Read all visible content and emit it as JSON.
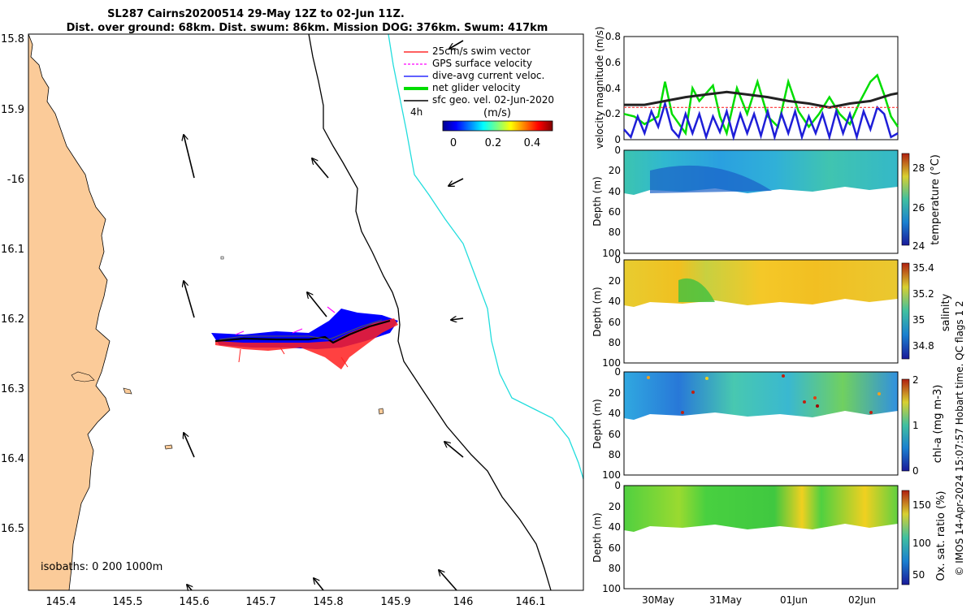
{
  "header": {
    "line1": "SL287 Cairns20200514 29-May 12Z to 02-Jun 11Z.",
    "line2": "Dist. over ground: 68km. Dist. swum: 86km. Mission DOG: 376km. Swum: 417km"
  },
  "map": {
    "lon_ticks": [
      "145.4",
      "145.5",
      "145.6",
      "145.7",
      "145.8",
      "145.9",
      "146",
      "146.1"
    ],
    "lat_ticks": [
      "15.8",
      "15.9",
      "-16",
      "16.1",
      "16.2",
      "16.3",
      "16.4",
      "16.5"
    ],
    "legend": [
      {
        "label": "25cm/s swim vector",
        "color": "#ff0000"
      },
      {
        "label": "GPS surface velocity",
        "color": "#ff00ff"
      },
      {
        "label": "dive-avg current veloc.",
        "color": "#0000ff"
      },
      {
        "label": "net glider velocity",
        "color": "#00dd00"
      },
      {
        "label": "sfc geo. vel. 02-Jun-2020",
        "color": "#000000"
      }
    ],
    "interval_label": "4h",
    "colorbar_title": "(m/s)",
    "colorbar_ticks": [
      "0",
      "0.2",
      "0.4"
    ],
    "isobaths_label": "isobaths: 0   200  1000m",
    "land_color": "#fbcb99",
    "isobath_200_color": "#000000",
    "isobath_1000_color": "#22dddd"
  },
  "chart_data": [
    {
      "type": "line",
      "ylabel": "velocity magnitude (m/s)",
      "ylim": [
        0,
        0.8
      ],
      "yticks": [
        "0",
        "0.2",
        "0.4",
        "0.6",
        "0.8"
      ],
      "xlim": [
        0,
        4
      ],
      "series": [
        {
          "name": "net glider velocity",
          "color": "#00dd00",
          "x": [
            0,
            0.15,
            0.3,
            0.5,
            0.6,
            0.7,
            0.9,
            1.0,
            1.1,
            1.3,
            1.4,
            1.5,
            1.65,
            1.8,
            1.95,
            2.1,
            2.25,
            2.4,
            2.55,
            2.7,
            2.85,
            3.0,
            3.15,
            3.3,
            3.45,
            3.6,
            3.7,
            3.8,
            3.9,
            4.0
          ],
          "y": [
            0.2,
            0.18,
            0.12,
            0.18,
            0.45,
            0.2,
            0.05,
            0.4,
            0.3,
            0.42,
            0.18,
            0.05,
            0.4,
            0.2,
            0.45,
            0.18,
            0.1,
            0.45,
            0.22,
            0.1,
            0.2,
            0.33,
            0.2,
            0.12,
            0.3,
            0.45,
            0.5,
            0.35,
            0.18,
            0.1
          ]
        },
        {
          "name": "dive-avg current veloc.",
          "color": "#1e1ed8",
          "x": [
            0,
            0.1,
            0.2,
            0.3,
            0.4,
            0.5,
            0.6,
            0.7,
            0.8,
            0.9,
            1.0,
            1.1,
            1.2,
            1.3,
            1.4,
            1.5,
            1.6,
            1.7,
            1.8,
            1.9,
            2.0,
            2.1,
            2.2,
            2.3,
            2.4,
            2.5,
            2.6,
            2.7,
            2.8,
            2.9,
            3.0,
            3.1,
            3.2,
            3.3,
            3.4,
            3.5,
            3.6,
            3.7,
            3.8,
            3.9,
            4.0
          ],
          "y": [
            0.08,
            0.02,
            0.18,
            0.05,
            0.22,
            0.1,
            0.28,
            0.08,
            0.02,
            0.2,
            0.05,
            0.2,
            0.02,
            0.18,
            0.06,
            0.22,
            0.02,
            0.2,
            0.05,
            0.2,
            0.03,
            0.22,
            0.02,
            0.2,
            0.05,
            0.22,
            0.02,
            0.18,
            0.05,
            0.2,
            0.02,
            0.22,
            0.05,
            0.2,
            0.02,
            0.22,
            0.08,
            0.25,
            0.2,
            0.02,
            0.05
          ]
        },
        {
          "name": "sfc geo. vel. 02-Jun-2020",
          "color": "#222222",
          "x": [
            0,
            0.3,
            0.6,
            0.9,
            1.2,
            1.5,
            1.8,
            2.1,
            2.4,
            2.7,
            3.0,
            3.3,
            3.6,
            3.9,
            4.0
          ],
          "y": [
            0.27,
            0.27,
            0.3,
            0.33,
            0.35,
            0.37,
            0.35,
            0.33,
            0.3,
            0.28,
            0.25,
            0.28,
            0.3,
            0.35,
            0.36
          ]
        },
        {
          "name": "25cm/s swim vector",
          "color": "#ff3333",
          "x": [
            0,
            4
          ],
          "y": [
            0.25,
            0.25
          ]
        }
      ]
    },
    {
      "type": "heatmap",
      "ylabel": "Depth (m)",
      "yticks": [
        "0",
        "20",
        "40",
        "60",
        "80",
        "100"
      ],
      "ylim": [
        0,
        100
      ],
      "colorbar_label": "temperature (°C)",
      "colorbar_ticks": [
        "28",
        "26",
        "24"
      ],
      "clim": [
        24,
        29
      ]
    },
    {
      "type": "heatmap",
      "ylabel": "Depth (m)",
      "yticks": [
        "0",
        "20",
        "40",
        "60",
        "80",
        "100"
      ],
      "ylim": [
        0,
        100
      ],
      "colorbar_label": "salinity",
      "colorbar_ticks": [
        "35.4",
        "35.2",
        "35",
        "34.8"
      ],
      "clim": [
        34.7,
        35.4
      ]
    },
    {
      "type": "heatmap",
      "ylabel": "Depth (m)",
      "yticks": [
        "0",
        "20",
        "40",
        "60",
        "80",
        "100"
      ],
      "ylim": [
        0,
        100
      ],
      "colorbar_label": "chl-a (mg m-3)",
      "colorbar_ticks": [
        "2",
        "1",
        "0"
      ],
      "clim": [
        0,
        2
      ]
    },
    {
      "type": "heatmap",
      "ylabel": "Depth (m)",
      "yticks": [
        "0",
        "20",
        "40",
        "60",
        "80",
        "100"
      ],
      "ylim": [
        0,
        100
      ],
      "colorbar_label": "Ox. sat. ratio (%)",
      "colorbar_ticks": [
        "150",
        "100",
        "50"
      ],
      "clim": [
        20,
        175
      ],
      "xticks": [
        "30May",
        "31May",
        "01Jun",
        "02Jun"
      ]
    }
  ],
  "footer_text": "© IMOS 14-Apr-2024 15:07:57 Hobart time. QC flags 1  2"
}
